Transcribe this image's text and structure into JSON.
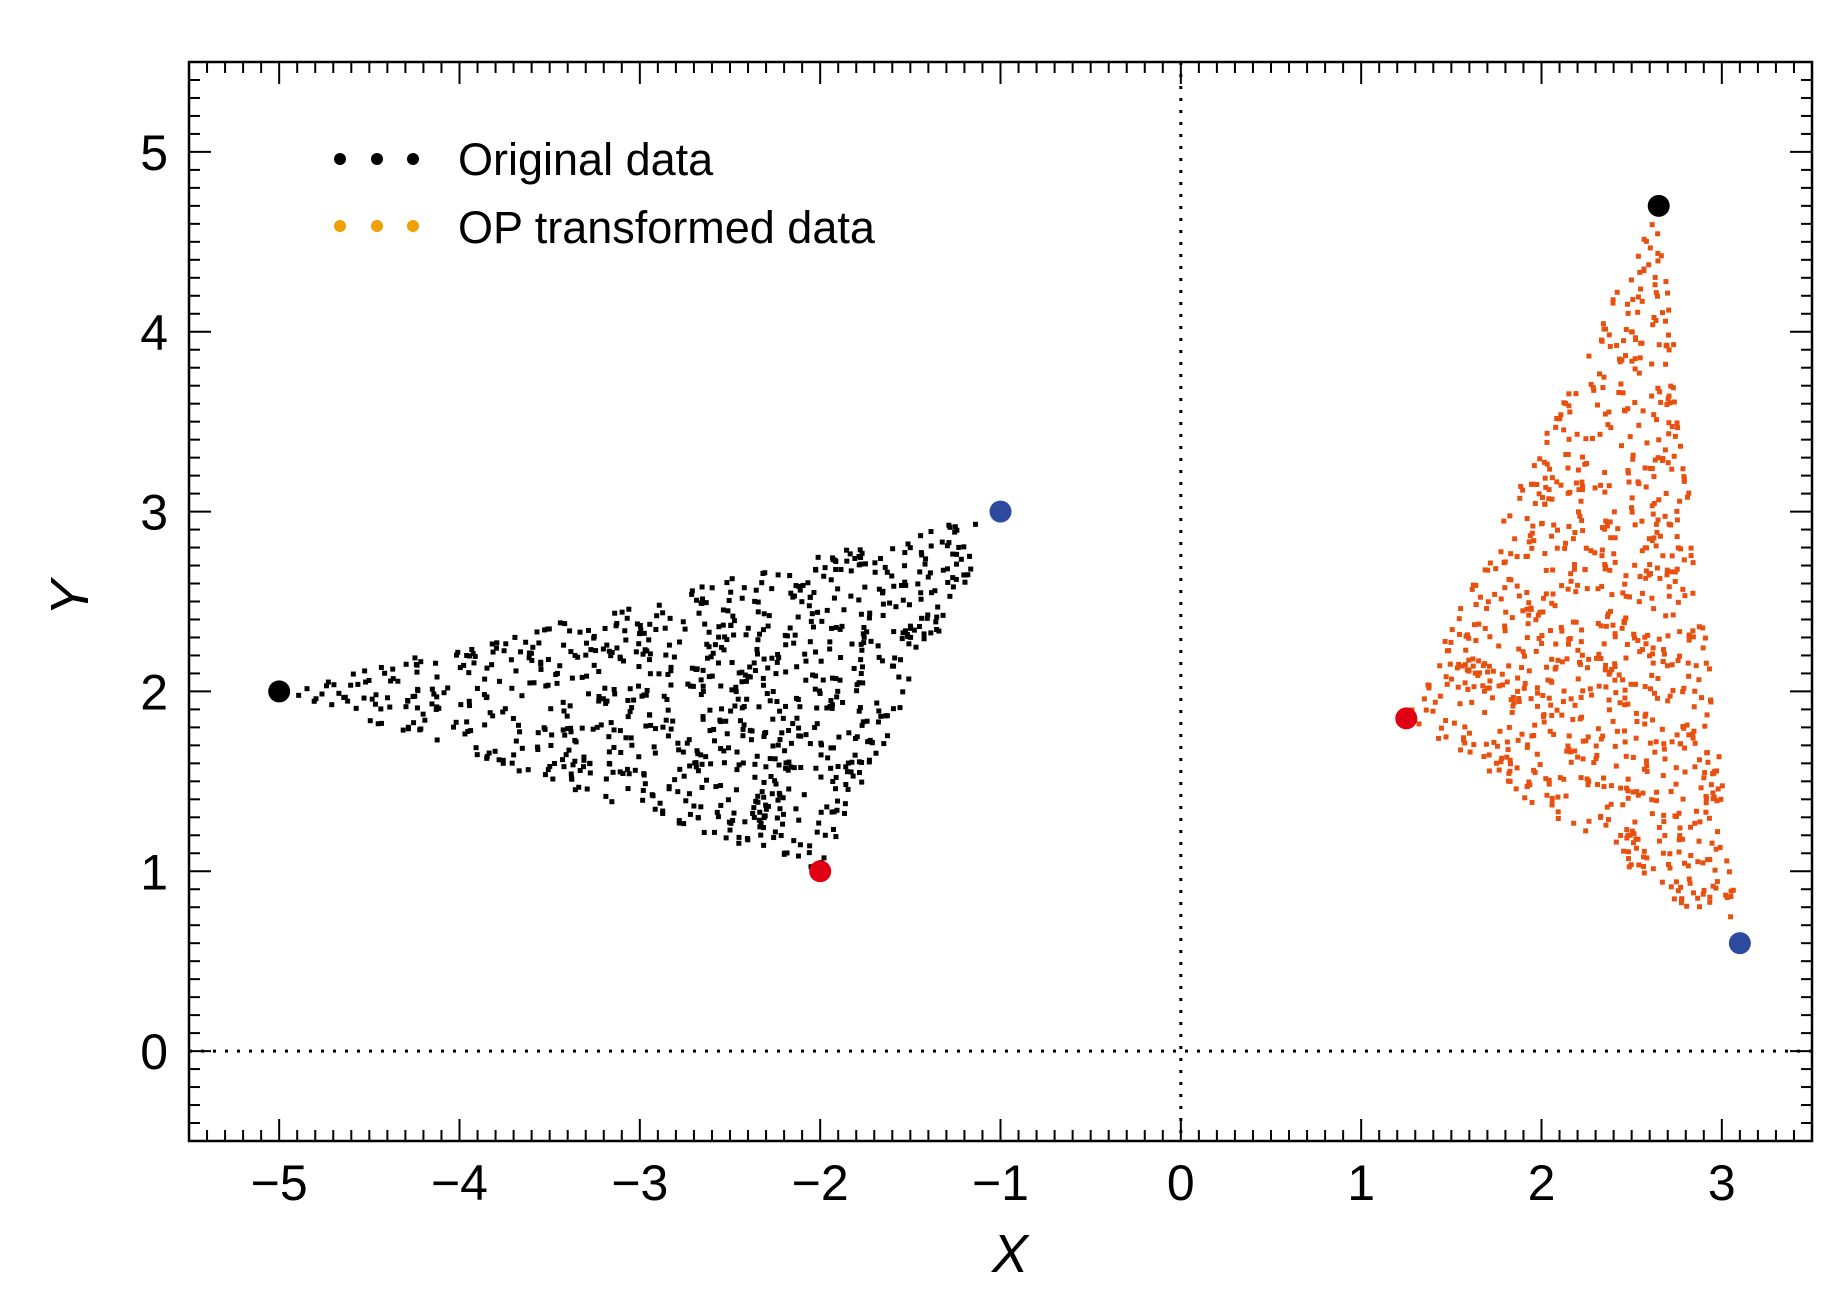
{
  "chart_data": {
    "type": "scatter",
    "title": "",
    "xlabel": "X",
    "ylabel": "Y",
    "xlim": [
      -5.5,
      3.5
    ],
    "ylim": [
      -0.5,
      5.5
    ],
    "xticks": [
      -5,
      -4,
      -3,
      -2,
      -1,
      0,
      1,
      2,
      3
    ],
    "xtick_labels": [
      "−5",
      "−4",
      "−3",
      "−2",
      "−1",
      "0",
      "1",
      "2",
      "3"
    ],
    "yticks": [
      0,
      1,
      2,
      3,
      4,
      5
    ],
    "ytick_labels": [
      "0",
      "1",
      "2",
      "3",
      "4",
      "5"
    ],
    "minor_tick_step": 0.1,
    "reference_lines": {
      "x": 0,
      "y": 0,
      "style": "dotted"
    },
    "grid": false,
    "legend": {
      "placement": "top-left",
      "entries": [
        {
          "label": "Original data",
          "color": "#000000"
        },
        {
          "label": "OP transformed data",
          "color": "#f0a000"
        }
      ]
    },
    "series": [
      {
        "name": "Original data",
        "color": "#000000",
        "distribution": "uniform in triangle",
        "sample_count": 900,
        "vertices": [
          {
            "x": -5,
            "y": 2,
            "marker_color": "#000000"
          },
          {
            "x": -2,
            "y": 1,
            "marker_color": "#e00012"
          },
          {
            "x": -1,
            "y": 3,
            "marker_color": "#2e4a9e"
          }
        ]
      },
      {
        "name": "OP transformed data",
        "color": "#e8500f",
        "distribution": "uniform in triangle",
        "sample_count": 900,
        "vertices": [
          {
            "x": 2.65,
            "y": 4.7,
            "marker_color": "#000000"
          },
          {
            "x": 1.25,
            "y": 1.85,
            "marker_color": "#e00012"
          },
          {
            "x": 3.1,
            "y": 0.6,
            "marker_color": "#2e4a9e"
          }
        ]
      }
    ]
  }
}
